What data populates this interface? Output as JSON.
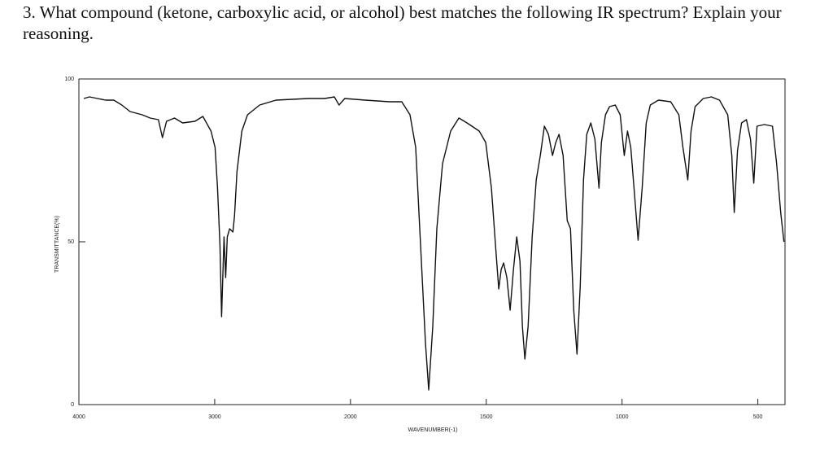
{
  "question": "3. What compound (ketone, carboxylic acid, or alcohol) best matches the following IR spectrum?  Explain your reasoning.",
  "chart_data": {
    "type": "line",
    "xlabel": "WAVENUMBER(-1)",
    "ylabel": "TRANSMITTANCE(%)",
    "xlim": [
      4000,
      400
    ],
    "x_scale_change": {
      "at": 2000,
      "factor": 2
    },
    "xticks": [
      4000,
      3000,
      2000,
      1500,
      1000,
      500
    ],
    "ylim": [
      0,
      100
    ],
    "yticks": [
      0,
      50,
      100
    ],
    "color": "#111111",
    "x": [
      3964,
      3922,
      3863,
      3803,
      3743,
      3684,
      3624,
      3534,
      3475,
      3415,
      3385,
      3355,
      3296,
      3236,
      3146,
      3087,
      3027,
      2997,
      2979,
      2961,
      2949,
      2931,
      2919,
      2907,
      2890,
      2866,
      2854,
      2836,
      2800,
      2758,
      2669,
      2549,
      2310,
      2191,
      2119,
      2084,
      2042,
      1946,
      1856,
      1811,
      1781,
      1760,
      1742,
      1724,
      1712,
      1697,
      1682,
      1661,
      1631,
      1601,
      1571,
      1526,
      1502,
      1481,
      1466,
      1454,
      1445,
      1436,
      1424,
      1412,
      1400,
      1388,
      1376,
      1367,
      1358,
      1346,
      1331,
      1316,
      1301,
      1286,
      1271,
      1256,
      1244,
      1232,
      1217,
      1202,
      1190,
      1178,
      1166,
      1154,
      1142,
      1130,
      1115,
      1100,
      1085,
      1076,
      1061,
      1046,
      1025,
      1007,
      992,
      980,
      968,
      956,
      941,
      926,
      911,
      896,
      866,
      821,
      791,
      776,
      758,
      746,
      731,
      701,
      671,
      641,
      611,
      596,
      587,
      575,
      560,
      542,
      527,
      515,
      503,
      476,
      446,
      431,
      416,
      404
    ],
    "values": [
      94,
      94.5,
      94,
      93.5,
      93.5,
      92,
      90,
      89,
      88,
      87.5,
      82,
      87,
      88,
      86.5,
      87,
      88.5,
      84,
      79,
      66.5,
      49,
      27,
      51.5,
      39,
      51.5,
      54,
      53,
      58,
      71.5,
      84,
      89,
      92,
      93.5,
      94,
      94,
      94.5,
      92,
      94,
      93.5,
      93,
      93,
      89,
      79,
      49,
      19,
      4.5,
      24,
      54,
      74,
      84,
      88,
      86.5,
      84,
      80.5,
      66.5,
      49,
      35.5,
      41.5,
      43.5,
      39,
      29,
      41.5,
      51.5,
      44,
      24,
      14,
      24,
      51.5,
      69,
      76.5,
      85.5,
      83,
      76.5,
      80.5,
      83,
      76.5,
      56.5,
      54,
      29,
      15.5,
      36.5,
      69,
      83,
      86.5,
      81.5,
      66.5,
      80.5,
      89,
      91.5,
      92,
      89,
      76.5,
      84,
      79,
      66.5,
      50.5,
      66.5,
      86.5,
      92,
      93.5,
      93,
      89,
      79,
      69,
      84,
      91.5,
      94,
      94.5,
      93.5,
      89,
      76.5,
      59,
      78,
      86.5,
      87.5,
      81.5,
      68,
      85.5,
      86,
      85.5,
      74,
      59,
      50
    ]
  }
}
